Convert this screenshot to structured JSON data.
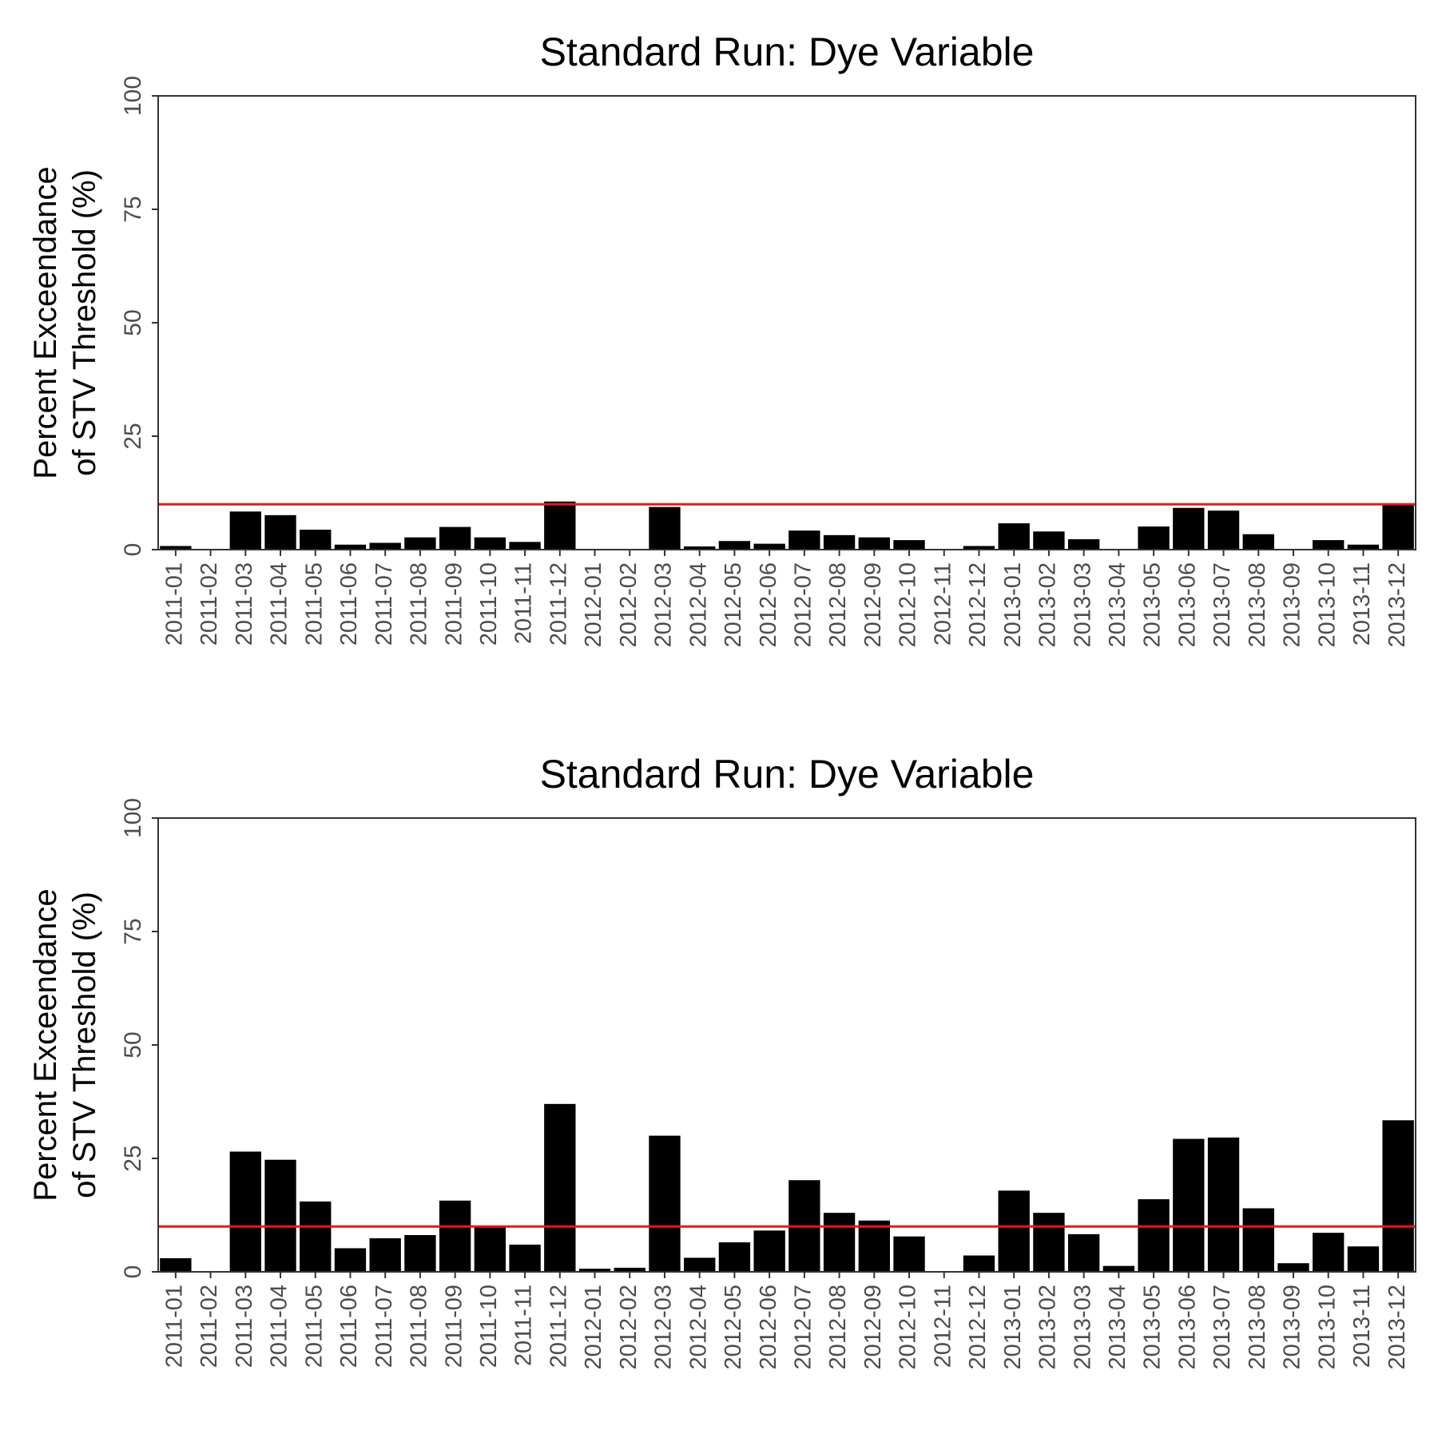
{
  "chart_data": [
    {
      "type": "bar",
      "title": "Standard Run: Dye Variable",
      "ylabel_line1": "Percent Exceendance",
      "ylabel_line2": "of STV Threshold (%)",
      "xlabel": "",
      "ylim": [
        0,
        100
      ],
      "yticks": [
        0,
        25,
        50,
        75,
        100
      ],
      "threshold": 10,
      "threshold_color": "#e41a1c",
      "bar_color": "#000000",
      "categories": [
        "2011-01",
        "2011-02",
        "2011-03",
        "2011-04",
        "2011-05",
        "2011-06",
        "2011-07",
        "2011-08",
        "2011-09",
        "2011-10",
        "2011-11",
        "2011-12",
        "2012-01",
        "2012-02",
        "2012-03",
        "2012-04",
        "2012-05",
        "2012-06",
        "2012-07",
        "2012-08",
        "2012-09",
        "2012-10",
        "2012-11",
        "2012-12",
        "2013-01",
        "2013-02",
        "2013-03",
        "2013-04",
        "2013-05",
        "2013-06",
        "2013-07",
        "2013-08",
        "2013-09",
        "2013-10",
        "2013-11",
        "2013-12"
      ],
      "values": [
        0.8,
        0,
        8.4,
        7.6,
        4.4,
        1.1,
        1.5,
        2.7,
        5,
        2.7,
        1.7,
        10.6,
        0,
        0,
        9.4,
        0.7,
        1.9,
        1.3,
        4.2,
        3.2,
        2.7,
        2.1,
        0,
        0.8,
        5.8,
        4,
        2.3,
        0,
        5.1,
        9.2,
        8.6,
        3.4,
        0,
        2.1,
        1.1,
        9.9
      ]
    },
    {
      "type": "bar",
      "title": "Standard Run: Dye Variable",
      "ylabel_line1": "Percent Exceendance",
      "ylabel_line2": "of STV Threshold (%)",
      "xlabel": "",
      "ylim": [
        0,
        100
      ],
      "yticks": [
        0,
        25,
        50,
        75,
        100
      ],
      "threshold": 10,
      "threshold_color": "#e41a1c",
      "bar_color": "#000000",
      "categories": [
        "2011-01",
        "2011-02",
        "2011-03",
        "2011-04",
        "2011-05",
        "2011-06",
        "2011-07",
        "2011-08",
        "2011-09",
        "2011-10",
        "2011-11",
        "2011-12",
        "2012-01",
        "2012-02",
        "2012-03",
        "2012-04",
        "2012-05",
        "2012-06",
        "2012-07",
        "2012-08",
        "2012-09",
        "2012-10",
        "2012-11",
        "2012-12",
        "2013-01",
        "2013-02",
        "2013-03",
        "2013-04",
        "2013-05",
        "2013-06",
        "2013-07",
        "2013-08",
        "2013-09",
        "2013-10",
        "2013-11",
        "2013-12"
      ],
      "values": [
        3,
        0,
        26.5,
        24.7,
        15.5,
        5.2,
        7.4,
        8.1,
        15.7,
        9.8,
        6,
        37,
        0.7,
        0.9,
        30,
        3.1,
        6.5,
        9.1,
        20.2,
        13,
        11.3,
        7.8,
        0,
        3.6,
        17.9,
        13,
        8.3,
        1.3,
        16,
        29.3,
        29.6,
        14,
        1.9,
        8.6,
        5.6,
        33.4
      ]
    }
  ]
}
